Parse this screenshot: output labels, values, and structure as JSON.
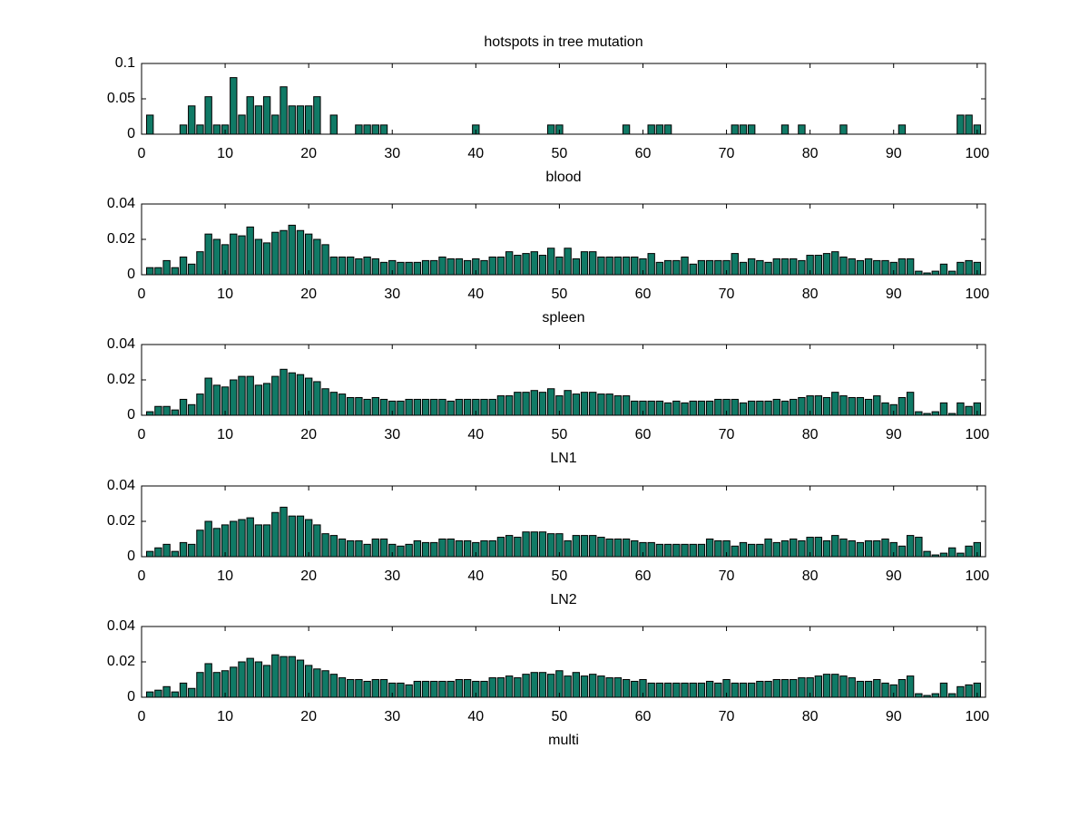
{
  "chart_data": [
    {
      "type": "bar",
      "title": "hotspots in tree mutation",
      "xlabel": "blood",
      "color": "#107a66",
      "x": [
        1,
        2,
        3,
        4,
        5,
        6,
        7,
        8,
        9,
        10,
        11,
        12,
        13,
        14,
        15,
        16,
        17,
        18,
        19,
        20,
        21,
        22,
        23,
        24,
        25,
        26,
        27,
        28,
        29,
        30,
        31,
        32,
        33,
        34,
        35,
        36,
        37,
        38,
        39,
        40,
        41,
        42,
        43,
        44,
        45,
        46,
        47,
        48,
        49,
        50,
        51,
        52,
        53,
        54,
        55,
        56,
        57,
        58,
        59,
        60,
        61,
        62,
        63,
        64,
        65,
        66,
        67,
        68,
        69,
        70,
        71,
        72,
        73,
        74,
        75,
        76,
        77,
        78,
        79,
        80,
        81,
        82,
        83,
        84,
        85,
        86,
        87,
        88,
        89,
        90,
        91,
        92,
        93,
        94,
        95,
        96,
        97,
        98,
        99,
        100
      ],
      "values": [
        0.027,
        0,
        0,
        0,
        0.013,
        0.04,
        0.013,
        0.053,
        0.013,
        0.013,
        0.08,
        0.027,
        0.053,
        0.04,
        0.053,
        0.027,
        0.067,
        0.04,
        0.04,
        0.04,
        0.053,
        0,
        0.027,
        0,
        0,
        0.013,
        0.013,
        0.013,
        0.013,
        0,
        0,
        0,
        0,
        0,
        0,
        0,
        0,
        0,
        0,
        0.013,
        0,
        0,
        0,
        0,
        0,
        0,
        0,
        0,
        0.013,
        0.013,
        0,
        0,
        0,
        0,
        0,
        0,
        0,
        0.013,
        0,
        0,
        0.013,
        0.013,
        0.013,
        0,
        0,
        0,
        0,
        0,
        0,
        0,
        0.013,
        0.013,
        0.013,
        0,
        0,
        0,
        0.013,
        0,
        0.013,
        0,
        0,
        0,
        0,
        0.013,
        0,
        0,
        0,
        0,
        0,
        0,
        0.013,
        0,
        0,
        0,
        0,
        0,
        0,
        0.027,
        0.027,
        0.013
      ],
      "xlim": [
        0,
        101
      ],
      "xticks": [
        0,
        10,
        20,
        30,
        40,
        50,
        60,
        70,
        80,
        90,
        100
      ],
      "ylim": [
        0,
        0.1
      ],
      "yticks": [
        0,
        0.05,
        0.1
      ]
    },
    {
      "type": "bar",
      "xlabel": "spleen",
      "color": "#107a66",
      "x": [
        1,
        2,
        3,
        4,
        5,
        6,
        7,
        8,
        9,
        10,
        11,
        12,
        13,
        14,
        15,
        16,
        17,
        18,
        19,
        20,
        21,
        22,
        23,
        24,
        25,
        26,
        27,
        28,
        29,
        30,
        31,
        32,
        33,
        34,
        35,
        36,
        37,
        38,
        39,
        40,
        41,
        42,
        43,
        44,
        45,
        46,
        47,
        48,
        49,
        50,
        51,
        52,
        53,
        54,
        55,
        56,
        57,
        58,
        59,
        60,
        61,
        62,
        63,
        64,
        65,
        66,
        67,
        68,
        69,
        70,
        71,
        72,
        73,
        74,
        75,
        76,
        77,
        78,
        79,
        80,
        81,
        82,
        83,
        84,
        85,
        86,
        87,
        88,
        89,
        90,
        91,
        92,
        93,
        94,
        95,
        96,
        97,
        98,
        99,
        100
      ],
      "values": [
        0.004,
        0.004,
        0.008,
        0.004,
        0.01,
        0.006,
        0.013,
        0.023,
        0.02,
        0.017,
        0.023,
        0.022,
        0.027,
        0.02,
        0.018,
        0.024,
        0.025,
        0.028,
        0.025,
        0.023,
        0.02,
        0.017,
        0.01,
        0.01,
        0.01,
        0.009,
        0.01,
        0.009,
        0.007,
        0.008,
        0.007,
        0.007,
        0.007,
        0.008,
        0.008,
        0.01,
        0.009,
        0.009,
        0.008,
        0.009,
        0.008,
        0.01,
        0.01,
        0.013,
        0.011,
        0.012,
        0.013,
        0.011,
        0.015,
        0.01,
        0.015,
        0.009,
        0.013,
        0.013,
        0.01,
        0.01,
        0.01,
        0.01,
        0.01,
        0.009,
        0.012,
        0.007,
        0.008,
        0.008,
        0.01,
        0.006,
        0.008,
        0.008,
        0.008,
        0.008,
        0.012,
        0.007,
        0.009,
        0.008,
        0.007,
        0.009,
        0.009,
        0.009,
        0.008,
        0.011,
        0.011,
        0.012,
        0.013,
        0.01,
        0.009,
        0.008,
        0.009,
        0.008,
        0.008,
        0.007,
        0.009,
        0.009,
        0.002,
        0.001,
        0.002,
        0.006,
        0.002,
        0.007,
        0.008,
        0.007
      ],
      "xlim": [
        0,
        101
      ],
      "xticks": [
        0,
        10,
        20,
        30,
        40,
        50,
        60,
        70,
        80,
        90,
        100
      ],
      "ylim": [
        0,
        0.04
      ],
      "yticks": [
        0,
        0.02,
        0.04
      ]
    },
    {
      "type": "bar",
      "xlabel": "LN1",
      "color": "#107a66",
      "x": [
        1,
        2,
        3,
        4,
        5,
        6,
        7,
        8,
        9,
        10,
        11,
        12,
        13,
        14,
        15,
        16,
        17,
        18,
        19,
        20,
        21,
        22,
        23,
        24,
        25,
        26,
        27,
        28,
        29,
        30,
        31,
        32,
        33,
        34,
        35,
        36,
        37,
        38,
        39,
        40,
        41,
        42,
        43,
        44,
        45,
        46,
        47,
        48,
        49,
        50,
        51,
        52,
        53,
        54,
        55,
        56,
        57,
        58,
        59,
        60,
        61,
        62,
        63,
        64,
        65,
        66,
        67,
        68,
        69,
        70,
        71,
        72,
        73,
        74,
        75,
        76,
        77,
        78,
        79,
        80,
        81,
        82,
        83,
        84,
        85,
        86,
        87,
        88,
        89,
        90,
        91,
        92,
        93,
        94,
        95,
        96,
        97,
        98,
        99,
        100
      ],
      "values": [
        0.002,
        0.005,
        0.005,
        0.003,
        0.009,
        0.006,
        0.012,
        0.021,
        0.017,
        0.016,
        0.02,
        0.022,
        0.022,
        0.017,
        0.018,
        0.022,
        0.026,
        0.024,
        0.023,
        0.021,
        0.019,
        0.015,
        0.013,
        0.012,
        0.01,
        0.01,
        0.009,
        0.01,
        0.009,
        0.008,
        0.008,
        0.009,
        0.009,
        0.009,
        0.009,
        0.009,
        0.008,
        0.009,
        0.009,
        0.009,
        0.009,
        0.009,
        0.011,
        0.011,
        0.013,
        0.013,
        0.014,
        0.013,
        0.015,
        0.011,
        0.014,
        0.012,
        0.013,
        0.013,
        0.012,
        0.012,
        0.011,
        0.011,
        0.008,
        0.008,
        0.008,
        0.008,
        0.007,
        0.008,
        0.007,
        0.008,
        0.008,
        0.008,
        0.009,
        0.009,
        0.009,
        0.007,
        0.008,
        0.008,
        0.008,
        0.009,
        0.008,
        0.009,
        0.01,
        0.011,
        0.011,
        0.01,
        0.013,
        0.011,
        0.01,
        0.01,
        0.009,
        0.011,
        0.007,
        0.006,
        0.01,
        0.013,
        0.002,
        0.001,
        0.002,
        0.007,
        0.001,
        0.007,
        0.005,
        0.007
      ],
      "xlim": [
        0,
        101
      ],
      "xticks": [
        0,
        10,
        20,
        30,
        40,
        50,
        60,
        70,
        80,
        90,
        100
      ],
      "ylim": [
        0,
        0.04
      ],
      "yticks": [
        0,
        0.02,
        0.04
      ]
    },
    {
      "type": "bar",
      "xlabel": "LN2",
      "color": "#107a66",
      "x": [
        1,
        2,
        3,
        4,
        5,
        6,
        7,
        8,
        9,
        10,
        11,
        12,
        13,
        14,
        15,
        16,
        17,
        18,
        19,
        20,
        21,
        22,
        23,
        24,
        25,
        26,
        27,
        28,
        29,
        30,
        31,
        32,
        33,
        34,
        35,
        36,
        37,
        38,
        39,
        40,
        41,
        42,
        43,
        44,
        45,
        46,
        47,
        48,
        49,
        50,
        51,
        52,
        53,
        54,
        55,
        56,
        57,
        58,
        59,
        60,
        61,
        62,
        63,
        64,
        65,
        66,
        67,
        68,
        69,
        70,
        71,
        72,
        73,
        74,
        75,
        76,
        77,
        78,
        79,
        80,
        81,
        82,
        83,
        84,
        85,
        86,
        87,
        88,
        89,
        90,
        91,
        92,
        93,
        94,
        95,
        96,
        97,
        98,
        99,
        100
      ],
      "values": [
        0.003,
        0.005,
        0.007,
        0.003,
        0.008,
        0.007,
        0.015,
        0.02,
        0.016,
        0.018,
        0.02,
        0.021,
        0.022,
        0.018,
        0.018,
        0.025,
        0.028,
        0.023,
        0.023,
        0.021,
        0.018,
        0.013,
        0.012,
        0.01,
        0.009,
        0.009,
        0.007,
        0.01,
        0.01,
        0.007,
        0.006,
        0.007,
        0.009,
        0.008,
        0.008,
        0.01,
        0.01,
        0.009,
        0.009,
        0.008,
        0.009,
        0.009,
        0.011,
        0.012,
        0.011,
        0.014,
        0.014,
        0.014,
        0.013,
        0.013,
        0.009,
        0.012,
        0.012,
        0.012,
        0.011,
        0.01,
        0.01,
        0.01,
        0.009,
        0.008,
        0.008,
        0.007,
        0.007,
        0.007,
        0.007,
        0.007,
        0.007,
        0.01,
        0.009,
        0.009,
        0.006,
        0.008,
        0.007,
        0.007,
        0.01,
        0.008,
        0.009,
        0.01,
        0.009,
        0.011,
        0.011,
        0.009,
        0.012,
        0.01,
        0.009,
        0.008,
        0.009,
        0.009,
        0.01,
        0.008,
        0.006,
        0.012,
        0.011,
        0.003,
        0.001,
        0.002,
        0.005,
        0.002,
        0.006,
        0.008
      ],
      "xlim": [
        0,
        101
      ],
      "xticks": [
        0,
        10,
        20,
        30,
        40,
        50,
        60,
        70,
        80,
        90,
        100
      ],
      "ylim": [
        0,
        0.04
      ],
      "yticks": [
        0,
        0.02,
        0.04
      ]
    },
    {
      "type": "bar",
      "xlabel": "multi",
      "color": "#107a66",
      "x": [
        1,
        2,
        3,
        4,
        5,
        6,
        7,
        8,
        9,
        10,
        11,
        12,
        13,
        14,
        15,
        16,
        17,
        18,
        19,
        20,
        21,
        22,
        23,
        24,
        25,
        26,
        27,
        28,
        29,
        30,
        31,
        32,
        33,
        34,
        35,
        36,
        37,
        38,
        39,
        40,
        41,
        42,
        43,
        44,
        45,
        46,
        47,
        48,
        49,
        50,
        51,
        52,
        53,
        54,
        55,
        56,
        57,
        58,
        59,
        60,
        61,
        62,
        63,
        64,
        65,
        66,
        67,
        68,
        69,
        70,
        71,
        72,
        73,
        74,
        75,
        76,
        77,
        78,
        79,
        80,
        81,
        82,
        83,
        84,
        85,
        86,
        87,
        88,
        89,
        90,
        91,
        92,
        93,
        94,
        95,
        96,
        97,
        98,
        99,
        100
      ],
      "values": [
        0.003,
        0.004,
        0.006,
        0.003,
        0.008,
        0.005,
        0.014,
        0.019,
        0.014,
        0.015,
        0.017,
        0.02,
        0.022,
        0.02,
        0.018,
        0.024,
        0.023,
        0.023,
        0.021,
        0.018,
        0.016,
        0.015,
        0.013,
        0.011,
        0.01,
        0.01,
        0.009,
        0.01,
        0.01,
        0.008,
        0.008,
        0.007,
        0.009,
        0.009,
        0.009,
        0.009,
        0.009,
        0.01,
        0.01,
        0.009,
        0.009,
        0.011,
        0.011,
        0.012,
        0.011,
        0.013,
        0.014,
        0.014,
        0.013,
        0.015,
        0.012,
        0.014,
        0.012,
        0.013,
        0.012,
        0.011,
        0.011,
        0.01,
        0.009,
        0.01,
        0.008,
        0.008,
        0.008,
        0.008,
        0.008,
        0.008,
        0.008,
        0.009,
        0.008,
        0.01,
        0.008,
        0.008,
        0.008,
        0.009,
        0.009,
        0.01,
        0.01,
        0.01,
        0.011,
        0.011,
        0.012,
        0.013,
        0.013,
        0.012,
        0.011,
        0.009,
        0.009,
        0.01,
        0.008,
        0.007,
        0.01,
        0.012,
        0.002,
        0.001,
        0.002,
        0.008,
        0.002,
        0.006,
        0.007,
        0.008
      ],
      "xlim": [
        0,
        101
      ],
      "xticks": [
        0,
        10,
        20,
        30,
        40,
        50,
        60,
        70,
        80,
        90,
        100
      ],
      "ylim": [
        0,
        0.04
      ],
      "yticks": [
        0,
        0.02,
        0.04
      ]
    }
  ]
}
